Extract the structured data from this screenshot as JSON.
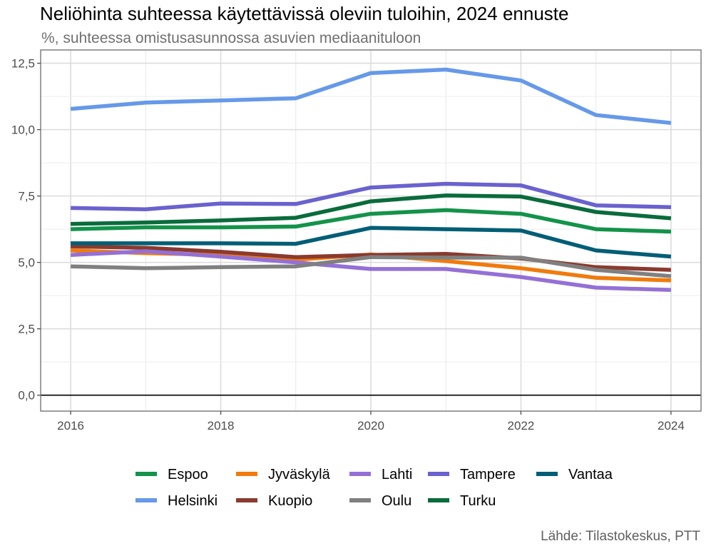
{
  "title": "Neliöhinta suhteessa käytettävissä oleviin tuloihin, 2024 ennuste",
  "subtitle": "%, suhteessa omistusasunnossa asuvien mediaanituloon",
  "source": "Lähde: Tilastokeskus, PTT",
  "chart_data": {
    "type": "line",
    "x": [
      2016,
      2017,
      2018,
      2019,
      2020,
      2021,
      2022,
      2023,
      2024
    ],
    "xticks": [
      2016,
      2018,
      2020,
      2022,
      2024
    ],
    "xtick_labels": [
      "2016",
      "2018",
      "2020",
      "2022",
      "2024"
    ],
    "yticks": [
      0,
      2.5,
      5,
      7.5,
      10,
      12.5
    ],
    "ytick_labels": [
      "0,0",
      "2,5",
      "5,0",
      "7,5",
      "10,0",
      "12,5"
    ],
    "xlim": [
      2015.6,
      2024.4
    ],
    "ylim": [
      -0.6,
      13.0
    ],
    "grid": true,
    "legend_position": "bottom",
    "series": [
      {
        "name": "Espoo",
        "color": "#13934A",
        "values": [
          6.25,
          6.32,
          6.32,
          6.35,
          6.83,
          6.97,
          6.83,
          6.25,
          6.16
        ]
      },
      {
        "name": "Helsinki",
        "color": "#6699E8",
        "values": [
          10.78,
          11.02,
          11.1,
          11.18,
          12.13,
          12.26,
          11.85,
          10.55,
          10.25
        ]
      },
      {
        "name": "Jyväskylä",
        "color": "#F07B0D",
        "values": [
          5.45,
          5.35,
          5.28,
          5.1,
          5.3,
          5.05,
          4.78,
          4.42,
          4.32
        ]
      },
      {
        "name": "Kuopio",
        "color": "#8A3A2E",
        "values": [
          5.6,
          5.55,
          5.4,
          5.2,
          5.28,
          5.32,
          5.15,
          4.82,
          4.72
        ]
      },
      {
        "name": "Lahti",
        "color": "#9470D6",
        "values": [
          5.28,
          5.42,
          5.22,
          5.0,
          4.75,
          4.75,
          4.45,
          4.05,
          3.96
        ]
      },
      {
        "name": "Oulu",
        "color": "#808080",
        "values": [
          4.85,
          4.78,
          4.82,
          4.85,
          5.2,
          5.18,
          5.18,
          4.72,
          4.48
        ]
      },
      {
        "name": "Tampere",
        "color": "#6A62CE",
        "values": [
          7.05,
          7.0,
          7.22,
          7.2,
          7.82,
          7.96,
          7.9,
          7.15,
          7.08
        ]
      },
      {
        "name": "Turku",
        "color": "#0A6B3C",
        "values": [
          6.45,
          6.5,
          6.58,
          6.68,
          7.3,
          7.52,
          7.48,
          6.9,
          6.66
        ]
      },
      {
        "name": "Vantaa",
        "color": "#005E75",
        "values": [
          5.72,
          5.72,
          5.72,
          5.7,
          6.3,
          6.25,
          6.2,
          5.45,
          5.22
        ]
      }
    ]
  }
}
